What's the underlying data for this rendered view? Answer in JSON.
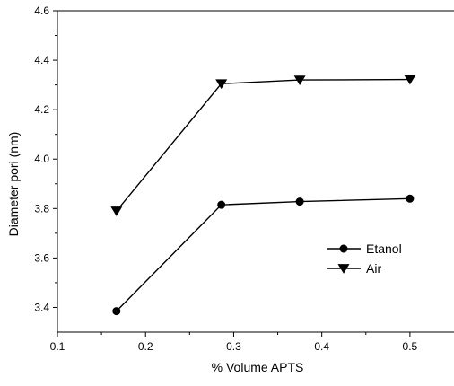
{
  "chart_data": {
    "type": "line",
    "xlabel": "% Volume APTS",
    "ylabel": "Diameter pori (nm)",
    "xlim": [
      0.1,
      0.55
    ],
    "ylim": [
      3.3,
      4.6
    ],
    "x_ticks": [
      {
        "value": 0.1,
        "label": "0.1"
      },
      {
        "value": 0.2,
        "label": "0.2"
      },
      {
        "value": 0.3,
        "label": "0.3"
      },
      {
        "value": 0.4,
        "label": "0.4"
      },
      {
        "value": 0.5,
        "label": "0.5"
      }
    ],
    "y_ticks": [
      {
        "value": 3.4,
        "label": "3.4"
      },
      {
        "value": 3.6,
        "label": "3.6"
      },
      {
        "value": 3.8,
        "label": "3.8"
      },
      {
        "value": 4.0,
        "label": "4.0"
      },
      {
        "value": 4.2,
        "label": "4.2"
      },
      {
        "value": 4.4,
        "label": "4.4"
      },
      {
        "value": 4.6,
        "label": "4.6"
      }
    ],
    "grid": false,
    "legend_position": "lower-right",
    "series": [
      {
        "name": "Etanol",
        "marker": "circle",
        "color": "#000000",
        "x": [
          0.167,
          0.286,
          0.375,
          0.5
        ],
        "y": [
          3.385,
          3.815,
          3.828,
          3.84
        ]
      },
      {
        "name": "Air",
        "marker": "triangle-down",
        "color": "#000000",
        "x": [
          0.167,
          0.286,
          0.375,
          0.5
        ],
        "y": [
          3.79,
          4.305,
          4.32,
          4.322
        ]
      }
    ]
  }
}
